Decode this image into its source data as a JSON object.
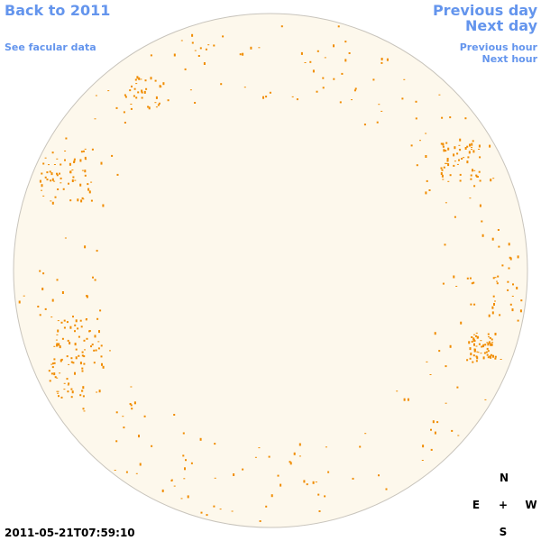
{
  "links": {
    "back": "Back to 2011",
    "facular": "See facular data",
    "previous_day": "Previous day",
    "next_day": "Next day",
    "previous_hour": "Previous hour",
    "next_hour": "Next hour"
  },
  "timestamp": "2011-05-21T07:59:10",
  "compass": {
    "north": "N",
    "east": "E",
    "center": "+",
    "west": "W",
    "south": "S"
  }
}
